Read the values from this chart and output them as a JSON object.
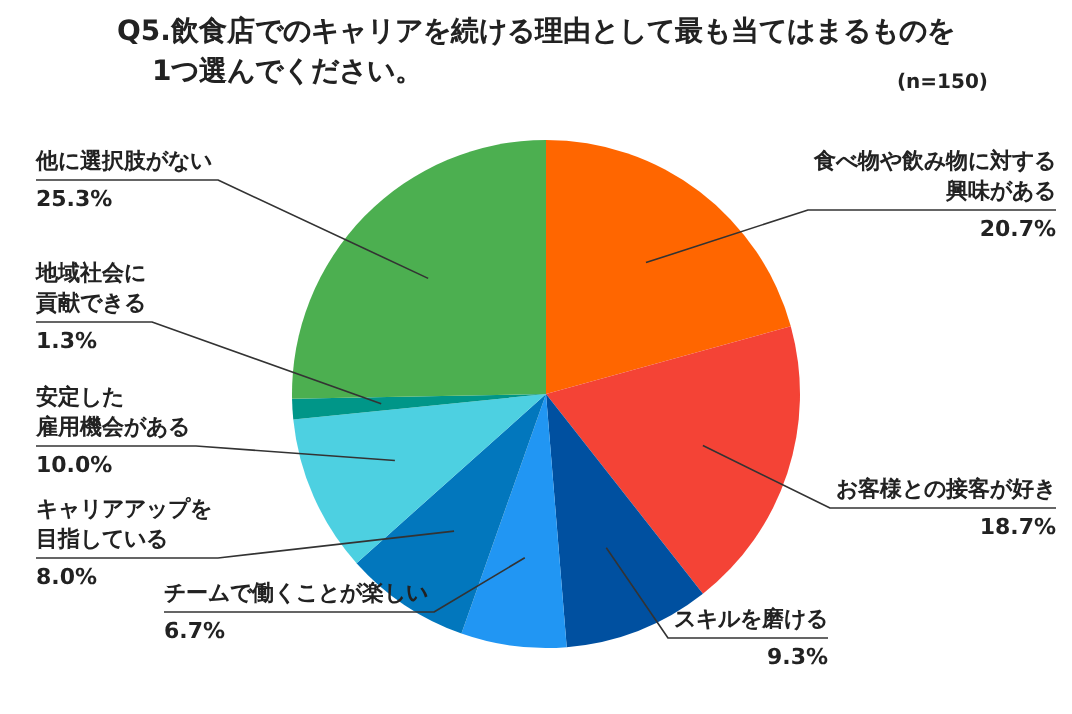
{
  "chart_data": {
    "type": "pie",
    "title": "Q5.飲食店でのキャリアを続ける理由として最も当てはまるものを1つ選んでください。",
    "subtitle": "(n=150)",
    "categories": [
      "食べ物や飲み物に対する興味がある",
      "お客様との接客が好き",
      "スキルを磨ける",
      "チームで働くことが楽しい",
      "キャリアアップを目指している",
      "安定した雇用機会がある",
      "地域社会に貢献できる",
      "他に選択肢がない"
    ],
    "values": [
      20.7,
      18.7,
      9.3,
      6.7,
      8.0,
      10.0,
      1.3,
      25.3
    ],
    "value_labels": [
      "20.7%",
      "18.7%",
      "9.3%",
      "6.7%",
      "8.0%",
      "10.0%",
      "1.3%",
      "25.3%"
    ],
    "colors": [
      "#ff6600",
      "#f44336",
      "#0050a0",
      "#2196f3",
      "#0277bd",
      "#4dd0e1",
      "#009688",
      "#4caf50"
    ],
    "legend": false
  }
}
